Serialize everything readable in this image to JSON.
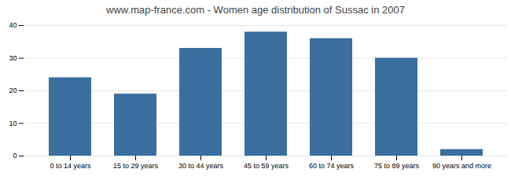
{
  "chart_data": {
    "type": "bar",
    "title": "www.map-france.com - Women age distribution of Sussac in 2007",
    "categories": [
      "0 to 14 years",
      "15 to 29 years",
      "30 to 44 years",
      "45 to 59 years",
      "60 to 74 years",
      "75 to 89 years",
      "90 years and more"
    ],
    "values": [
      24,
      19,
      33,
      38,
      36,
      30,
      2
    ],
    "color": "#3a6f9f",
    "ylim": [
      0,
      40
    ],
    "yticks": [
      0,
      10,
      20,
      30,
      40
    ],
    "grid": true
  }
}
